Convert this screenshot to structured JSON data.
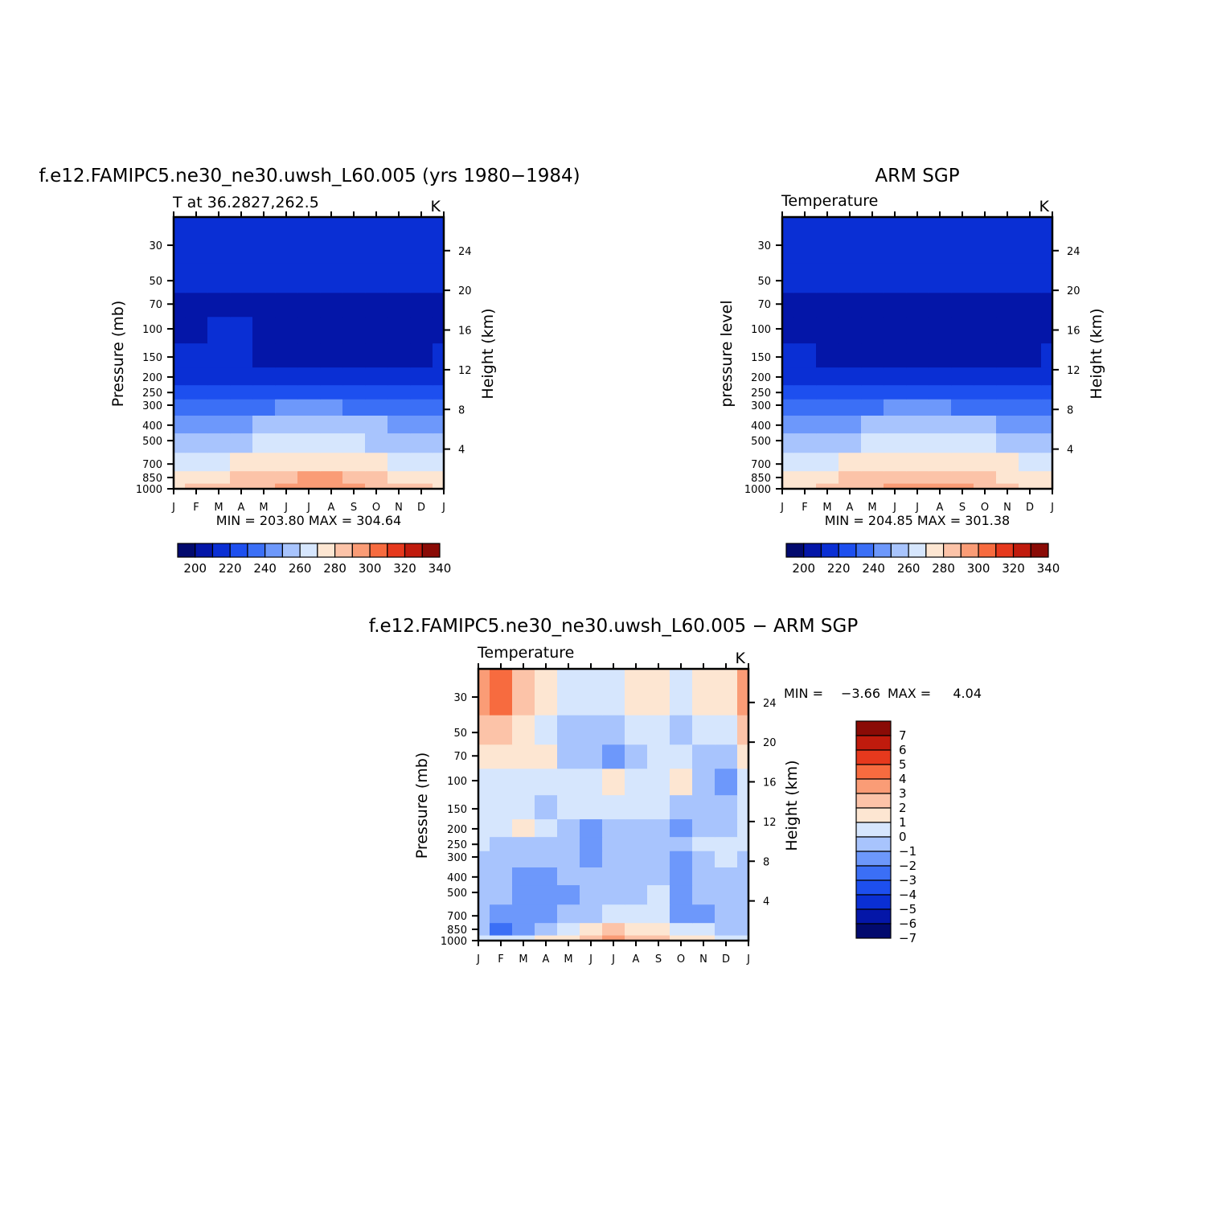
{
  "months": [
    "J",
    "F",
    "M",
    "A",
    "M",
    "J",
    "J",
    "A",
    "S",
    "O",
    "N",
    "D",
    "J"
  ],
  "palette": [
    "#020a6e",
    "#0416a8",
    "#0a2fd4",
    "#1d4fef",
    "#3b6ff6",
    "#6d98fb",
    "#a8c4fd",
    "#d6e6fd",
    "#fde6d2",
    "#fcc3a8",
    "#fa9c76",
    "#f76b3f",
    "#e6391d",
    "#c01b0d",
    "#8a0b06"
  ],
  "panels": [
    {
      "id": "model",
      "title": "f.e12.FAMIPC5.ne30_ne30.uwsh_L60.005 (yrs 1980−1984)",
      "left_label": "T at 36.2827,262.5",
      "units": "K",
      "ylabel": "Pressure (mb)",
      "y2label": "Height (km)",
      "minmax": "MIN = 203.80 MAX = 304.64",
      "pressure_ticks": [
        "30",
        "50",
        "70",
        "100",
        "150",
        "200",
        "250",
        "300",
        "400",
        "500",
        "700",
        "850",
        "1000"
      ],
      "height_ticks": [
        "24",
        "20",
        "16",
        "12",
        "8",
        "4"
      ],
      "colorbar_labels": [
        "200",
        "220",
        "240",
        "260",
        "280",
        "300",
        "320",
        "340"
      ]
    },
    {
      "id": "obs",
      "title": "ARM SGP",
      "left_label": "Temperature",
      "units": "K",
      "ylabel": "pressure level",
      "y2label": "Height (km)",
      "minmax": "MIN = 204.85 MAX = 301.38",
      "pressure_ticks": [
        "30",
        "50",
        "70",
        "100",
        "150",
        "200",
        "250",
        "300",
        "400",
        "500",
        "700",
        "850",
        "1000"
      ],
      "height_ticks": [
        "24",
        "20",
        "16",
        "12",
        "8",
        "4"
      ],
      "colorbar_labels": [
        "200",
        "220",
        "240",
        "260",
        "280",
        "300",
        "320",
        "340"
      ]
    },
    {
      "id": "diff",
      "title": "f.e12.FAMIPC5.ne30_ne30.uwsh_L60.005 − ARM SGP",
      "left_label": "Temperature",
      "units": "K",
      "ylabel": "Pressure (mb)",
      "y2label": "Height (km)",
      "minmax_label_min": "MIN =",
      "minmax_val_min": "−3.66",
      "minmax_label_max": "MAX =",
      "minmax_val_max": "4.04",
      "pressure_ticks": [
        "30",
        "50",
        "70",
        "100",
        "150",
        "200",
        "250",
        "300",
        "400",
        "500",
        "700",
        "850",
        "1000"
      ],
      "height_ticks": [
        "24",
        "20",
        "16",
        "12",
        "8",
        "4"
      ],
      "colorbar_labels": [
        "7",
        "6",
        "5",
        "4",
        "3",
        "2",
        "1",
        "0",
        "−1",
        "−2",
        "−3",
        "−4",
        "−5",
        "−6",
        "−7"
      ]
    }
  ],
  "chart_data": [
    {
      "type": "heatmap",
      "title": "f.e12.FAMIPC5.ne30_ne30.uwsh_L60.005 (yrs 1980−1984)",
      "subtitle": "T at 36.2827,262.5",
      "xlabel": "",
      "ylabel": "Pressure (mb)",
      "y2label": "Height (km)",
      "units": "K",
      "x": [
        "J",
        "F",
        "M",
        "A",
        "M",
        "J",
        "J",
        "A",
        "S",
        "O",
        "N",
        "D",
        "J"
      ],
      "pressure_levels": [
        1000,
        850,
        700,
        500,
        400,
        300,
        250,
        200,
        150,
        100,
        70,
        50,
        30
      ],
      "contour_levels": [
        195,
        205,
        215,
        225,
        235,
        245,
        255,
        265,
        275,
        285,
        295,
        305,
        315,
        325,
        335,
        345
      ],
      "min": 203.8,
      "max": 304.64,
      "values": [
        [
          283,
          285,
          287,
          290,
          293,
          297,
          302,
          300,
          296,
          292,
          288,
          285,
          283
        ],
        [
          278,
          279,
          282,
          285,
          289,
          293,
          296,
          295,
          292,
          288,
          284,
          281,
          278
        ],
        [
          270,
          271,
          273,
          276,
          279,
          282,
          284,
          283,
          281,
          278,
          274,
          272,
          270
        ],
        [
          258,
          259,
          261,
          263,
          266,
          268,
          270,
          269,
          267,
          264,
          261,
          259,
          258
        ],
        [
          250,
          251,
          252,
          254,
          256,
          258,
          260,
          259,
          257,
          255,
          253,
          251,
          250
        ],
        [
          239,
          239,
          240,
          241,
          243,
          245,
          247,
          246,
          244,
          242,
          240,
          239,
          239
        ],
        [
          228,
          228,
          229,
          230,
          232,
          233,
          234,
          233,
          232,
          231,
          230,
          229,
          228
        ],
        [
          220,
          220,
          220,
          220,
          219,
          218,
          217,
          217,
          218,
          219,
          220,
          220,
          220
        ],
        [
          216,
          216,
          215,
          215,
          212,
          210,
          210,
          210,
          210,
          211,
          212,
          214,
          216
        ],
        [
          212,
          214,
          216,
          215,
          212,
          210,
          210,
          210,
          210,
          210,
          210,
          211,
          213
        ],
        [
          213,
          214,
          214,
          214,
          212,
          211,
          211,
          211,
          211,
          211,
          211,
          211,
          212
        ],
        [
          216,
          216,
          216,
          216,
          216,
          216,
          216,
          216,
          216,
          216,
          216,
          216,
          216
        ],
        [
          218,
          218,
          218,
          218,
          218,
          218,
          217,
          216,
          216,
          218,
          218,
          218,
          218
        ]
      ]
    },
    {
      "type": "heatmap",
      "title": "ARM SGP",
      "subtitle": "Temperature",
      "xlabel": "",
      "ylabel": "pressure level",
      "y2label": "Height (km)",
      "units": "K",
      "x": [
        "J",
        "F",
        "M",
        "A",
        "M",
        "J",
        "J",
        "A",
        "S",
        "O",
        "N",
        "D",
        "J"
      ],
      "pressure_levels": [
        1000,
        850,
        700,
        500,
        400,
        300,
        250,
        200,
        150,
        100,
        70,
        50,
        30
      ],
      "contour_levels": [
        195,
        205,
        215,
        225,
        235,
        245,
        255,
        265,
        275,
        285,
        295,
        305,
        315,
        325,
        335,
        345
      ],
      "min": 204.85,
      "max": 301.38,
      "values": [
        [
          281,
          283,
          286,
          290,
          293,
          297,
          300,
          299,
          296,
          292,
          287,
          284,
          281
        ],
        [
          277,
          278,
          281,
          285,
          288,
          292,
          294,
          293,
          291,
          287,
          283,
          280,
          277
        ],
        [
          271,
          272,
          274,
          277,
          280,
          283,
          284,
          283,
          281,
          278,
          275,
          272,
          271
        ],
        [
          259,
          260,
          262,
          264,
          266,
          268,
          269,
          268,
          267,
          265,
          262,
          260,
          259
        ],
        [
          250,
          251,
          252,
          254,
          256,
          258,
          259,
          258,
          257,
          255,
          253,
          251,
          250
        ],
        [
          240,
          240,
          241,
          242,
          244,
          245,
          246,
          245,
          244,
          243,
          241,
          240,
          240
        ],
        [
          230,
          229,
          229,
          230,
          232,
          233,
          233,
          233,
          232,
          231,
          230,
          230,
          230
        ],
        [
          220,
          220,
          220,
          219,
          218,
          217,
          216,
          216,
          217,
          218,
          219,
          220,
          220
        ],
        [
          215,
          215,
          214,
          213,
          212,
          210,
          210,
          210,
          210,
          211,
          212,
          213,
          215
        ],
        [
          212,
          213,
          214,
          213,
          212,
          211,
          210,
          210,
          210,
          210,
          211,
          212,
          212
        ],
        [
          212,
          213,
          213,
          213,
          212,
          211,
          211,
          211,
          211,
          211,
          211,
          211,
          212
        ],
        [
          215,
          216,
          216,
          216,
          216,
          216,
          216,
          216,
          216,
          216,
          216,
          216,
          215
        ],
        [
          218,
          218,
          218,
          218,
          218,
          218,
          217,
          216,
          216,
          218,
          218,
          218,
          218
        ]
      ]
    },
    {
      "type": "heatmap",
      "title": "f.e12.FAMIPC5.ne30_ne30.uwsh_L60.005 − ARM SGP",
      "subtitle": "Temperature",
      "xlabel": "",
      "ylabel": "Pressure (mb)",
      "y2label": "Height (km)",
      "units": "K",
      "x": [
        "J",
        "F",
        "M",
        "A",
        "M",
        "J",
        "J",
        "A",
        "S",
        "O",
        "N",
        "D",
        "J"
      ],
      "pressure_levels": [
        1000,
        850,
        700,
        500,
        400,
        300,
        250,
        200,
        150,
        100,
        70,
        50,
        30
      ],
      "contour_levels": [
        -8,
        -7,
        -6,
        -5,
        -4,
        -3,
        -2,
        -1,
        0,
        1,
        2,
        3,
        4,
        5,
        6,
        7,
        8
      ],
      "min": -3.66,
      "max": 4.04,
      "values": [
        [
          -0.5,
          -0.8,
          -0.6,
          0.2,
          0.6,
          1.2,
          2.5,
          1.8,
          1.2,
          0.6,
          0.3,
          -0.4,
          -0.5
        ],
        [
          -2.0,
          -3.1,
          -2.6,
          -1.6,
          -0.5,
          0.4,
          1.0,
          0.6,
          0.3,
          -0.4,
          -1.0,
          -1.8,
          -2.0
        ],
        [
          -1.8,
          -2.2,
          -2.4,
          -2.2,
          -2.0,
          -1.3,
          -0.8,
          -0.9,
          -1.0,
          -2.1,
          -2.2,
          -2.0,
          -1.8
        ],
        [
          -1.6,
          -1.9,
          -2.2,
          -2.4,
          -2.2,
          -1.8,
          -1.5,
          -1.2,
          -1.0,
          -2.5,
          -1.7,
          -1.5,
          -1.6
        ],
        [
          -1.4,
          -1.8,
          -2.2,
          -2.2,
          -2.0,
          -2.0,
          -1.6,
          -1.4,
          -1.3,
          -2.8,
          -1.4,
          -1.2,
          -1.4
        ],
        [
          -1.2,
          -1.6,
          -2.0,
          -1.9,
          -2.0,
          -2.2,
          -2.0,
          -1.8,
          -1.6,
          -2.3,
          -1.2,
          -0.6,
          -1.2
        ],
        [
          -1.0,
          -1.2,
          -1.6,
          -1.6,
          -1.8,
          -2.1,
          -2.0,
          -1.6,
          -1.7,
          -2.0,
          -1.0,
          -0.8,
          -1.0
        ],
        [
          -0.8,
          -0.9,
          0.2,
          -1.0,
          -1.2,
          -2.2,
          -1.7,
          -1.2,
          -1.5,
          -2.2,
          -1.4,
          -1.3,
          -0.8
        ],
        [
          -0.6,
          -0.5,
          -0.4,
          -1.3,
          -1.0,
          -1.0,
          -0.8,
          -0.6,
          -1.0,
          -1.6,
          -1.8,
          -1.9,
          -0.6
        ],
        [
          -0.4,
          -0.3,
          -0.5,
          -0.8,
          -0.6,
          -0.9,
          0.5,
          -0.3,
          -0.5,
          0.3,
          -1.8,
          -2.2,
          -0.4
        ],
        [
          0.5,
          0.6,
          0.8,
          0.3,
          -1.5,
          -2.0,
          -2.2,
          -1.6,
          -0.8,
          -0.2,
          -1.2,
          -1.4,
          0.5
        ],
        [
          1.5,
          1.2,
          0.6,
          -0.5,
          -1.8,
          -1.5,
          -1.2,
          -0.6,
          -0.4,
          -1.2,
          -0.5,
          -0.2,
          1.5
        ],
        [
          2.0,
          3.3,
          1.8,
          0.6,
          -0.6,
          -0.5,
          -0.3,
          0.2,
          0.6,
          -0.4,
          0.3,
          0.7,
          2.0
        ]
      ]
    }
  ]
}
